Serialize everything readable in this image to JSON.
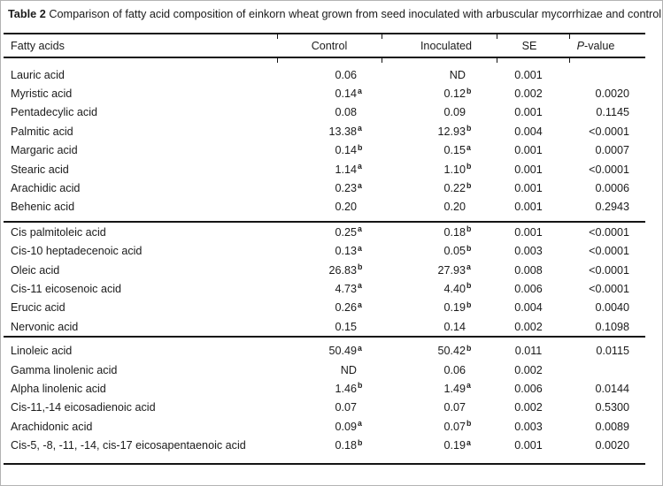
{
  "title": {
    "label": "Table 2",
    "text": "Comparison of fatty acid composition of einkorn wheat grown from seed inoculated with arbuscular mycorrhizae and control"
  },
  "colors": {
    "text": "#1b1b1b",
    "rule": "#141414",
    "background": "#ffffff",
    "frame_border": "#b3b3b3"
  },
  "table": {
    "columns": {
      "fatty_acids": "Fatty acids",
      "control": "Control",
      "inoculated": "Inoculated",
      "se": "SE",
      "p_prefix": "P",
      "p_suffix": "-value"
    },
    "groups": [
      {
        "rows": [
          {
            "name": "Lauric acid",
            "control": "0.06",
            "inoculated": "ND",
            "se": "0.001",
            "p": ""
          },
          {
            "name": "Myristic acid",
            "control": "0.14",
            "control_sup": "a",
            "inoculated": "0.12",
            "inoculated_sup": "b",
            "se": "0.002",
            "p": "0.0020"
          },
          {
            "name": "Pentadecylic acid",
            "control": "0.08",
            "inoculated": "0.09",
            "se": "0.001",
            "p": "0.1145"
          },
          {
            "name": "Palmitic acid",
            "control": "13.38",
            "control_sup": "a",
            "inoculated": "12.93",
            "inoculated_sup": "b",
            "se": "0.004",
            "p": "<0.0001"
          },
          {
            "name": "Margaric acid",
            "control": "0.14",
            "control_sup": "b",
            "inoculated": "0.15",
            "inoculated_sup": "a",
            "se": "0.001",
            "p": "0.0007"
          },
          {
            "name": "Stearic acid",
            "control": "1.14",
            "control_sup": "a",
            "inoculated": "1.10",
            "inoculated_sup": "b",
            "se": "0.001",
            "p": "<0.0001"
          },
          {
            "name": "Arachidic acid",
            "control": "0.23",
            "control_sup": "a",
            "inoculated": "0.22",
            "inoculated_sup": "b",
            "se": "0.001",
            "p": "0.0006"
          },
          {
            "name": "Behenic acid",
            "control": "0.20",
            "inoculated": "0.20",
            "se": "0.001",
            "p": "0.2943"
          }
        ]
      },
      {
        "rows": [
          {
            "name": "Cis palmitoleic acid",
            "control": "0.25",
            "control_sup": "a",
            "inoculated": "0.18",
            "inoculated_sup": "b",
            "se": "0.001",
            "p": "<0.0001"
          },
          {
            "name": "Cis-10 heptadecenoic acid",
            "control": "0.13",
            "control_sup": "a",
            "inoculated": "0.05",
            "inoculated_sup": "b",
            "se": "0.003",
            "p": "<0.0001"
          },
          {
            "name": "Oleic acid",
            "control": "26.83",
            "control_sup": "b",
            "inoculated": "27.93",
            "inoculated_sup": "a",
            "se": "0.008",
            "p": "<0.0001"
          },
          {
            "name": "Cis-11 eicosenoic acid",
            "control": "4.73",
            "control_sup": "a",
            "inoculated": "4.40",
            "inoculated_sup": "b",
            "se": "0.006",
            "p": "<0.0001"
          },
          {
            "name": "Erucic acid",
            "control": "0.26",
            "control_sup": "a",
            "inoculated": "0.19",
            "inoculated_sup": "b",
            "se": "0.004",
            "p": "0.0040"
          },
          {
            "name": "Nervonic acid",
            "control": "0.15",
            "inoculated": "0.14",
            "se": "0.002",
            "p": "0.1098"
          }
        ]
      },
      {
        "rows": [
          {
            "name": "Linoleic acid",
            "control": "50.49",
            "control_sup": "a",
            "inoculated": "50.42",
            "inoculated_sup": "b",
            "se": "0.011",
            "p": "0.0115"
          },
          {
            "name": "Gamma linolenic acid",
            "control": "ND",
            "inoculated": "0.06",
            "se": "0.002",
            "p": ""
          },
          {
            "name": "Alpha linolenic acid",
            "control": "1.46",
            "control_sup": "b",
            "inoculated": "1.49",
            "inoculated_sup": "a",
            "se": "0.006",
            "p": "0.0144"
          },
          {
            "name": "Cis-11,-14 eicosadienoic acid",
            "control": "0.07",
            "inoculated": "0.07",
            "se": "0.002",
            "p": "0.5300"
          },
          {
            "name": "Arachidonic acid",
            "control": "0.09",
            "control_sup": "a",
            "inoculated": "0.07",
            "inoculated_sup": "b",
            "se": "0.003",
            "p": "0.0089"
          },
          {
            "name": "Cis-5, -8, -11, -14, cis-17 eicosapentaenoic acid",
            "control": "0.18",
            "control_sup": "b",
            "inoculated": "0.19",
            "inoculated_sup": "a",
            "se": "0.001",
            "p": "0.0020"
          }
        ]
      }
    ]
  }
}
